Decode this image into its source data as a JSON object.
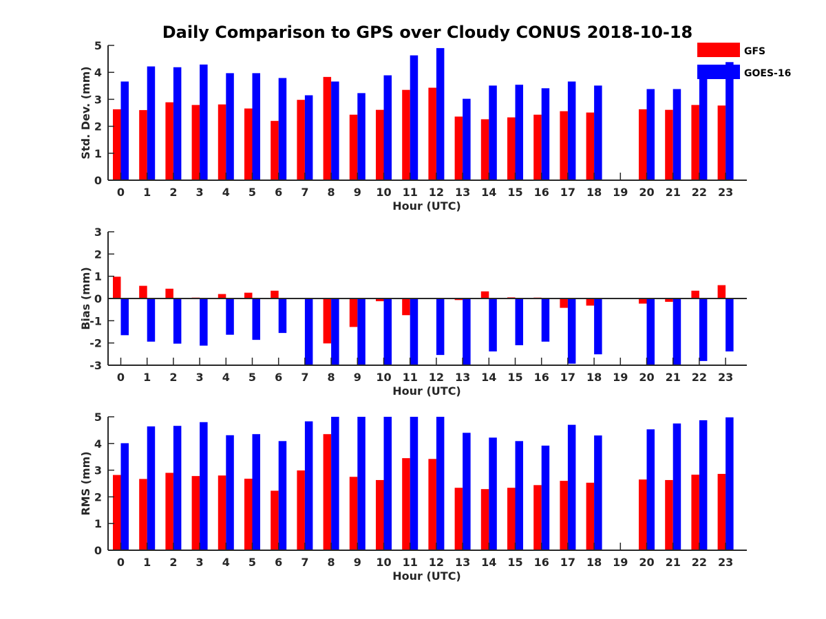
{
  "title": "Daily Comparison to GPS over Cloudy CONUS 2018-10-18",
  "colors": {
    "GFS": "#ff0000",
    "GOES-16": "#0000ff",
    "axis": "#262626"
  },
  "legend": {
    "placement": "top-right",
    "entries": [
      "GFS",
      "GOES-16"
    ]
  },
  "chart_data": [
    {
      "type": "bar",
      "xlabel": "Hour (UTC)",
      "ylabel": "Std. Dev. (mm)",
      "ylim": [
        0,
        5
      ],
      "yticks": [
        0,
        1,
        2,
        3,
        4,
        5
      ],
      "categories": [
        "0",
        "1",
        "2",
        "3",
        "4",
        "5",
        "6",
        "7",
        "8",
        "9",
        "10",
        "11",
        "12",
        "13",
        "14",
        "15",
        "16",
        "17",
        "18",
        "19",
        "20",
        "21",
        "22",
        "23"
      ],
      "series": [
        {
          "name": "GFS",
          "values": [
            2.63,
            2.6,
            2.89,
            2.79,
            2.81,
            2.66,
            2.2,
            2.98,
            3.83,
            2.43,
            2.61,
            3.35,
            3.43,
            2.36,
            2.26,
            2.33,
            2.43,
            2.56,
            2.51,
            null,
            2.63,
            2.61,
            2.79,
            2.77
          ]
        },
        {
          "name": "GOES-16",
          "values": [
            3.66,
            4.22,
            4.19,
            4.29,
            3.97,
            3.97,
            3.79,
            3.15,
            3.66,
            3.23,
            3.89,
            4.63,
            4.9,
            3.02,
            3.51,
            3.54,
            3.41,
            3.66,
            3.51,
            null,
            3.38,
            3.38,
            3.97,
            4.38
          ]
        }
      ]
    },
    {
      "type": "bar",
      "xlabel": "Hour (UTC)",
      "ylabel": "Bias (mm)",
      "ylim": [
        -3,
        3
      ],
      "yticks": [
        -3,
        -2,
        -1,
        0,
        1,
        2,
        3
      ],
      "categories": [
        "0",
        "1",
        "2",
        "3",
        "4",
        "5",
        "6",
        "7",
        "8",
        "9",
        "10",
        "11",
        "12",
        "13",
        "14",
        "15",
        "16",
        "17",
        "18",
        "19",
        "20",
        "21",
        "22",
        "23"
      ],
      "series": [
        {
          "name": "GFS",
          "values": [
            0.98,
            0.57,
            0.44,
            0.04,
            0.2,
            0.26,
            0.35,
            0.0,
            -2.02,
            -1.28,
            -0.12,
            -0.75,
            0.0,
            -0.07,
            0.32,
            0.05,
            0.04,
            -0.42,
            -0.32,
            null,
            -0.23,
            -0.15,
            0.35,
            0.6
          ]
        },
        {
          "name": "GOES-16",
          "values": [
            -1.65,
            -1.94,
            -2.03,
            -2.12,
            -1.63,
            -1.86,
            -1.55,
            -3.0,
            -3.0,
            -3.0,
            -3.0,
            -3.0,
            -2.54,
            -3.0,
            -2.38,
            -2.1,
            -1.94,
            -2.93,
            -2.51,
            null,
            -3.0,
            -3.0,
            -2.81,
            -2.38
          ]
        }
      ]
    },
    {
      "type": "bar",
      "xlabel": "Hour (UTC)",
      "ylabel": "RMS (mm)",
      "ylim": [
        0,
        5
      ],
      "yticks": [
        0,
        1,
        2,
        3,
        4,
        5
      ],
      "categories": [
        "0",
        "1",
        "2",
        "3",
        "4",
        "5",
        "6",
        "7",
        "8",
        "9",
        "10",
        "11",
        "12",
        "13",
        "14",
        "15",
        "16",
        "17",
        "18",
        "19",
        "20",
        "21",
        "22",
        "23"
      ],
      "series": [
        {
          "name": "GFS",
          "values": [
            2.82,
            2.67,
            2.9,
            2.78,
            2.8,
            2.68,
            2.23,
            2.99,
            4.35,
            2.75,
            2.63,
            3.45,
            3.42,
            2.34,
            2.29,
            2.34,
            2.44,
            2.6,
            2.53,
            null,
            2.65,
            2.63,
            2.83,
            2.86
          ]
        },
        {
          "name": "GOES-16",
          "values": [
            4.01,
            4.64,
            4.66,
            4.8,
            4.31,
            4.35,
            4.09,
            4.83,
            5.0,
            5.0,
            5.0,
            5.0,
            5.0,
            4.4,
            4.22,
            4.09,
            3.92,
            4.7,
            4.3,
            null,
            4.53,
            4.75,
            4.87,
            4.98
          ]
        }
      ]
    }
  ]
}
